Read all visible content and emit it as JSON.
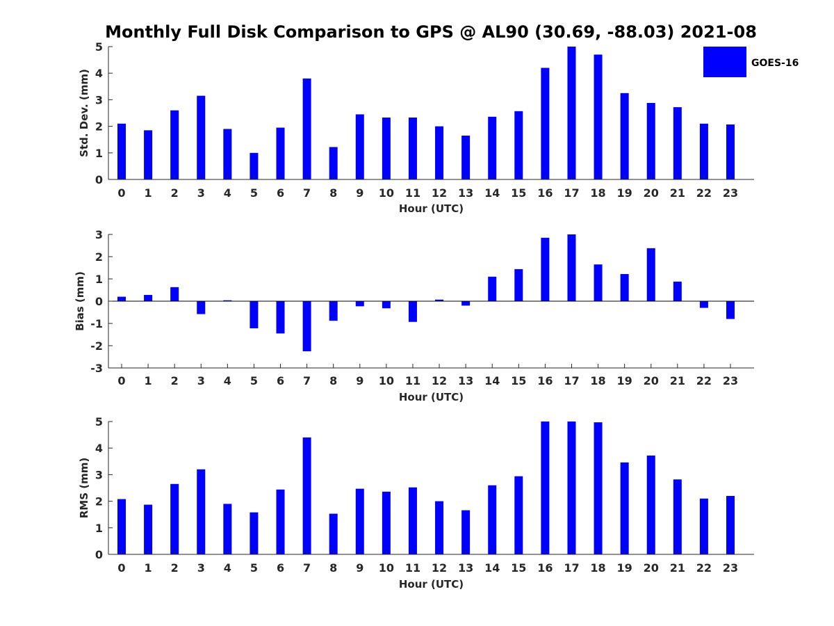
{
  "figure": {
    "title": "Monthly Full Disk Comparison to GPS @ AL90 (30.69, -88.03) 2021-08",
    "legend": {
      "label": "GOES-16",
      "color": "#0000ff",
      "placement": "top-right"
    }
  },
  "chart_data": [
    {
      "type": "bar",
      "ylabel": "Std. Dev. (mm)",
      "xlabel": "Hour (UTC)",
      "ylim": [
        0,
        5
      ],
      "yticks": [
        0,
        1,
        2,
        3,
        4,
        5
      ],
      "categories": [
        0,
        1,
        2,
        3,
        4,
        5,
        6,
        7,
        8,
        9,
        10,
        11,
        12,
        13,
        14,
        15,
        16,
        17,
        18,
        19,
        20,
        21,
        22,
        23
      ],
      "series": [
        {
          "name": "GOES-16",
          "color": "#0000ff",
          "values": [
            2.1,
            1.85,
            2.6,
            3.15,
            1.9,
            1.0,
            1.95,
            3.8,
            1.22,
            2.45,
            2.33,
            2.33,
            2.0,
            1.65,
            2.36,
            2.57,
            4.2,
            5.0,
            4.7,
            3.25,
            2.88,
            2.72,
            2.1,
            2.07
          ]
        }
      ],
      "grid": false
    },
    {
      "type": "bar",
      "ylabel": "Bias (mm)",
      "xlabel": "Hour (UTC)",
      "ylim": [
        -3,
        3
      ],
      "yticks": [
        -3,
        -2,
        -1,
        0,
        1,
        2,
        3
      ],
      "categories": [
        0,
        1,
        2,
        3,
        4,
        5,
        6,
        7,
        8,
        9,
        10,
        11,
        12,
        13,
        14,
        15,
        16,
        17,
        18,
        19,
        20,
        21,
        22,
        23
      ],
      "series": [
        {
          "name": "GOES-16",
          "color": "#0000ff",
          "values": [
            0.2,
            0.28,
            0.63,
            -0.58,
            0.04,
            -1.22,
            -1.45,
            -2.25,
            -0.88,
            -0.23,
            -0.32,
            -0.93,
            0.07,
            -0.2,
            1.1,
            1.44,
            2.85,
            3.0,
            1.65,
            1.22,
            2.38,
            0.88,
            -0.3,
            -0.8
          ]
        }
      ],
      "grid": false
    },
    {
      "type": "bar",
      "ylabel": "RMS (mm)",
      "xlabel": "Hour (UTC)",
      "ylim": [
        0,
        5
      ],
      "yticks": [
        0,
        1,
        2,
        3,
        4,
        5
      ],
      "categories": [
        0,
        1,
        2,
        3,
        4,
        5,
        6,
        7,
        8,
        9,
        10,
        11,
        12,
        13,
        14,
        15,
        16,
        17,
        18,
        19,
        20,
        21,
        22,
        23
      ],
      "series": [
        {
          "name": "GOES-16",
          "color": "#0000ff",
          "values": [
            2.08,
            1.87,
            2.65,
            3.2,
            1.9,
            1.58,
            2.44,
            4.4,
            1.53,
            2.47,
            2.36,
            2.52,
            2.0,
            1.66,
            2.6,
            2.94,
            5.0,
            5.0,
            4.97,
            3.46,
            3.72,
            2.82,
            2.1,
            2.2
          ]
        }
      ],
      "grid": false
    }
  ]
}
